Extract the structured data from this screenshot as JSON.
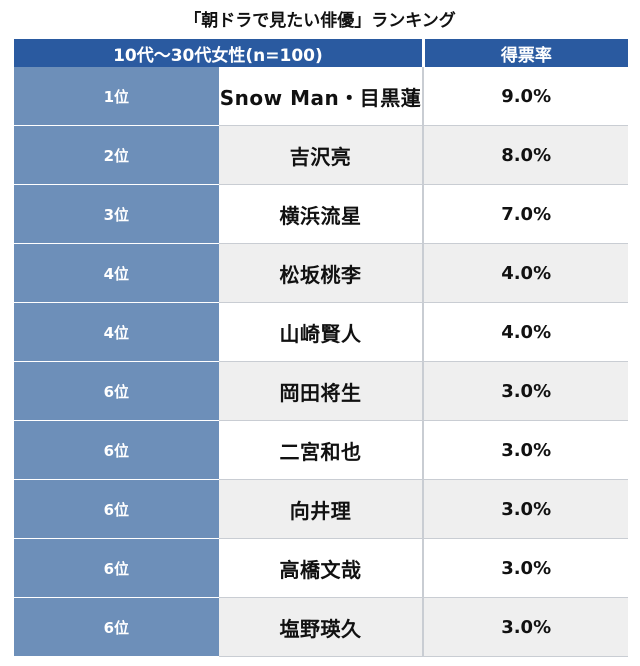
{
  "title": "「朝ドラで見たい俳優」ランキング",
  "header": {
    "group": "10代〜30代女性(n=100)",
    "rate": "得票率"
  },
  "rows": [
    {
      "rank": "1位",
      "name": "Snow Man・目黒蓮",
      "rate": "9.0%"
    },
    {
      "rank": "2位",
      "name": "吉沢亮",
      "rate": "8.0%"
    },
    {
      "rank": "3位",
      "name": "横浜流星",
      "rate": "7.0%"
    },
    {
      "rank": "4位",
      "name": "松坂桃李",
      "rate": "4.0%"
    },
    {
      "rank": "4位",
      "name": "山崎賢人",
      "rate": "4.0%"
    },
    {
      "rank": "6位",
      "name": "岡田将生",
      "rate": "3.0%"
    },
    {
      "rank": "6位",
      "name": "二宮和也",
      "rate": "3.0%"
    },
    {
      "rank": "6位",
      "name": "向井理",
      "rate": "3.0%"
    },
    {
      "rank": "6位",
      "name": "高橋文哉",
      "rate": "3.0%"
    },
    {
      "rank": "6位",
      "name": "塩野瑛久",
      "rate": "3.0%"
    }
  ],
  "colors": {
    "header_bg": "#2a5aa0",
    "rank_bg": "#6d8fb9",
    "alt_row_bg": "#efefef"
  }
}
